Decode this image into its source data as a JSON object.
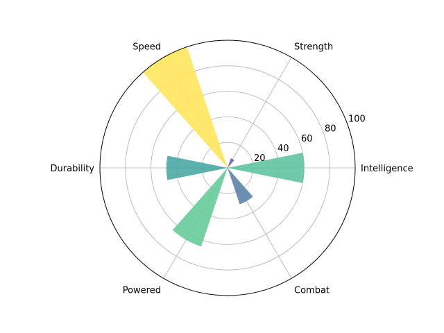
{
  "chart_data": {
    "type": "bar",
    "subtype": "polar",
    "categories": [
      "Intelligence",
      "Strength",
      "Speed",
      "Durability",
      "Powered",
      "Combat"
    ],
    "values": [
      60,
      8,
      100,
      48,
      65,
      30
    ],
    "angles_deg": [
      0,
      60,
      120,
      180,
      240,
      300
    ],
    "colors": [
      "#5ec4a0",
      "#7b5ea7",
      "#ffe55c",
      "#4aa9a3",
      "#66cc99",
      "#5b84a8"
    ],
    "rlim": [
      0,
      100
    ],
    "rticks": [
      20,
      40,
      60,
      80,
      100
    ],
    "grid": true,
    "title": ""
  }
}
